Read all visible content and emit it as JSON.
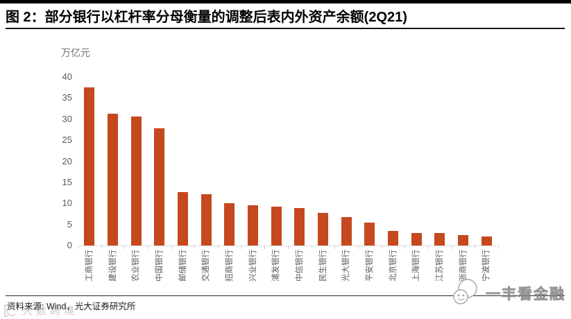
{
  "header": {
    "title": "图 2：部分银行以杠杆率分母衡量的调整后表内外资产余额(2Q21)"
  },
  "chart_data": {
    "type": "bar",
    "title": "部分银行以杠杆率分母衡量的调整后表内外资产余额(2Q21)",
    "unit_label": "万亿元",
    "categories": [
      "工商银行",
      "建设银行",
      "农业银行",
      "中国银行",
      "邮储银行",
      "交通银行",
      "招商银行",
      "兴业银行",
      "浦发银行",
      "中信银行",
      "民生银行",
      "光大银行",
      "平安银行",
      "北京银行",
      "上海银行",
      "江苏银行",
      "浙商银行",
      "宁波银行"
    ],
    "values": [
      37.6,
      31.3,
      30.6,
      27.9,
      12.6,
      12.2,
      10.0,
      9.6,
      9.2,
      8.9,
      7.7,
      6.7,
      5.4,
      3.5,
      3.0,
      2.9,
      2.5,
      2.1
    ],
    "ylabel": "万亿元",
    "ylim": [
      0,
      40
    ],
    "yticks": [
      0,
      5,
      10,
      15,
      20,
      25,
      30,
      35,
      40
    ],
    "grid": false,
    "legend": "none",
    "bar_color": "#C5481F",
    "axis_line_color": "#D9D9D9",
    "tick_label_color": "#595959"
  },
  "footer": {
    "source": "资料来源: Wind，光大证券研究所"
  },
  "watermarks": {
    "bottom_left": "大数跨境",
    "bottom_right": "一丰看金融"
  }
}
